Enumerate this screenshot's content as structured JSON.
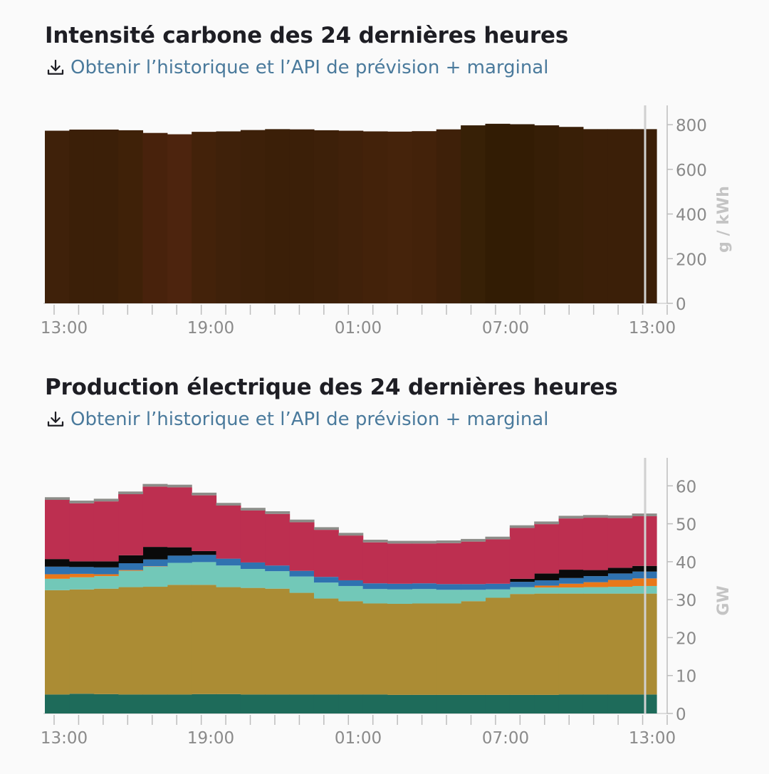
{
  "panels": {
    "carbon": {
      "title": "Intensité carbone des 24 dernières heures",
      "link_label": "Obtenir l’historique et l’API de prévision + marginal"
    },
    "production": {
      "title": "Production électrique des 24 dernières heures",
      "link_label": "Obtenir l’historique et l’API de prévision + marginal"
    }
  },
  "icons": {
    "download": "download-icon"
  },
  "colors": {
    "link": "#4a7a9c",
    "axis_text": "#8a8a8a",
    "cursor_line": "#d0d0d0"
  },
  "chart_data": [
    {
      "type": "bar",
      "ylabel": "g / kWh",
      "ylim": [
        0,
        880
      ],
      "yticks": [
        0,
        200,
        400,
        600,
        800
      ],
      "xticks": [
        "13:00",
        "19:00",
        "01:00",
        "07:00",
        "13:00"
      ],
      "bar_colors": [
        "#3f210a",
        "#3b1f08",
        "#3b1f08",
        "#3f2108",
        "#48220c",
        "#4d240e",
        "#43220a",
        "#3f210a",
        "#3d2009",
        "#3b1f08",
        "#3b1f08",
        "#3d2009",
        "#40210a",
        "#43220a",
        "#45230b",
        "#43220a",
        "#3e2009",
        "#372006",
        "#321c04",
        "#331c04",
        "#361e06",
        "#391f07",
        "#3b1f08",
        "#3b1f08",
        "#3b1f08"
      ],
      "values": [
        773,
        778,
        778,
        775,
        763,
        757,
        768,
        770,
        776,
        780,
        779,
        775,
        773,
        770,
        769,
        771,
        779,
        797,
        804,
        802,
        797,
        790,
        780,
        780,
        780
      ]
    },
    {
      "type": "area",
      "ylabel": "GW",
      "ylim": [
        0,
        67
      ],
      "yticks": [
        0,
        10,
        20,
        30,
        40,
        50,
        60
      ],
      "xticks": [
        "13:00",
        "19:00",
        "01:00",
        "07:00",
        "13:00"
      ],
      "series": [
        {
          "color": "#1e6b5a",
          "values": [
            5.0,
            5.2,
            5.1,
            5.0,
            5.0,
            5.0,
            5.1,
            5.1,
            5.0,
            5.0,
            5.0,
            5.0,
            5.0,
            5.0,
            4.9,
            4.9,
            4.9,
            4.9,
            4.9,
            4.9,
            4.9,
            5.0,
            5.0,
            5.0,
            5.0
          ]
        },
        {
          "color": "#ab8c34",
          "values": [
            27.5,
            27.5,
            27.8,
            28.3,
            28.4,
            28.9,
            28.8,
            28.2,
            28.1,
            27.9,
            26.8,
            25.3,
            24.6,
            24.0,
            24.0,
            24.1,
            24.1,
            24.7,
            25.6,
            26.6,
            26.7,
            26.6,
            26.6,
            26.6,
            26.6
          ]
        },
        {
          "color": "#72c8b8",
          "values": [
            3.0,
            3.2,
            3.3,
            4.3,
            5.3,
            5.8,
            6.0,
            5.7,
            5.0,
            4.6,
            4.3,
            4.2,
            4.0,
            3.8,
            3.8,
            3.8,
            3.6,
            3.0,
            2.2,
            1.8,
            1.6,
            1.6,
            1.7,
            1.8,
            2.0
          ]
        },
        {
          "color": "#e8781a",
          "values": [
            1.2,
            0.9,
            0.5,
            0.2,
            0.1,
            0.0,
            0.0,
            0.0,
            0.0,
            0.0,
            0.0,
            0.0,
            0.0,
            0.0,
            0.0,
            0.0,
            0.0,
            0.0,
            0.0,
            0.0,
            0.5,
            1.0,
            1.3,
            1.8,
            2.0
          ]
        },
        {
          "color": "#2f72b0",
          "values": [
            2.0,
            1.8,
            1.8,
            1.8,
            1.8,
            1.9,
            1.9,
            1.8,
            1.7,
            1.5,
            1.5,
            1.5,
            1.5,
            1.5,
            1.5,
            1.5,
            1.5,
            1.5,
            1.5,
            1.4,
            1.4,
            1.5,
            1.6,
            1.7,
            1.8
          ]
        },
        {
          "color": "#0a0a0a",
          "values": [
            2.0,
            1.5,
            1.6,
            2.1,
            3.3,
            2.2,
            1.0,
            0.0,
            0.0,
            0.0,
            0.0,
            0.0,
            0.0,
            0.0,
            0.0,
            0.0,
            0.0,
            0.0,
            0.0,
            0.8,
            1.8,
            2.2,
            1.6,
            1.5,
            1.5
          ]
        },
        {
          "color": "#bd2f50",
          "values": [
            15.6,
            15.3,
            15.8,
            16.1,
            15.9,
            15.8,
            14.7,
            14.0,
            13.7,
            13.6,
            12.8,
            12.4,
            11.8,
            10.8,
            10.6,
            10.5,
            10.8,
            11.2,
            11.7,
            13.4,
            13.0,
            13.5,
            13.8,
            13.1,
            13.1
          ]
        },
        {
          "color": "#8c8c88",
          "values": [
            0.7,
            0.7,
            0.7,
            0.7,
            0.7,
            0.7,
            0.7,
            0.7,
            0.7,
            0.7,
            0.7,
            0.7,
            0.7,
            0.7,
            0.7,
            0.7,
            0.7,
            0.7,
            0.7,
            0.7,
            0.7,
            0.7,
            0.7,
            0.7,
            0.7
          ]
        }
      ]
    }
  ]
}
